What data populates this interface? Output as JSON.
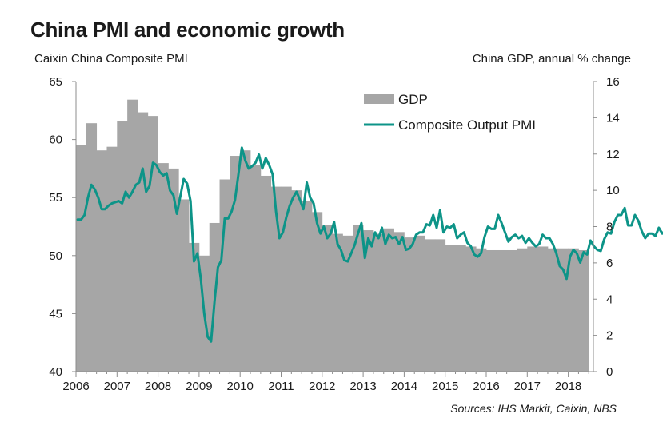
{
  "title": "China PMI and economic growth",
  "left_axis_title": "Caixin China Composite PMI",
  "right_axis_title": "China GDP, annual % change",
  "source": "Sources: IHS Markit, Caixin, NBS",
  "colors": {
    "gdp": "#a6a6a6",
    "pmi": "#0d9488",
    "axis": "#8c8c8c",
    "text": "#1a1a1a"
  },
  "chart_data": {
    "type": "bar+line",
    "x_ticks": [
      "2006",
      "2007",
      "2008",
      "2009",
      "2010",
      "2011",
      "2012",
      "2013",
      "2014",
      "2015",
      "2016",
      "2017",
      "2018"
    ],
    "left_axis": {
      "label": "Caixin China Composite PMI",
      "ylim": [
        40,
        65
      ],
      "ticks": [
        40,
        45,
        50,
        55,
        60,
        65
      ]
    },
    "right_axis": {
      "label": "China GDP, annual % change",
      "ylim": [
        0,
        16
      ],
      "ticks": [
        0,
        2,
        4,
        6,
        8,
        10,
        12,
        14,
        16
      ]
    },
    "legend": {
      "position": "top-right",
      "entries": [
        "GDP",
        "Composite Output PMI"
      ]
    },
    "grid": false,
    "series": [
      {
        "name": "GDP",
        "type": "bar",
        "axis": "right",
        "x": [
          "2006Q1",
          "2006Q2",
          "2006Q3",
          "2006Q4",
          "2007Q1",
          "2007Q2",
          "2007Q3",
          "2007Q4",
          "2008Q1",
          "2008Q2",
          "2008Q3",
          "2008Q4",
          "2009Q1",
          "2009Q2",
          "2009Q3",
          "2009Q4",
          "2010Q1",
          "2010Q2",
          "2010Q3",
          "2010Q4",
          "2011Q1",
          "2011Q2",
          "2011Q3",
          "2011Q4",
          "2012Q1",
          "2012Q2",
          "2012Q3",
          "2012Q4",
          "2013Q1",
          "2013Q2",
          "2013Q3",
          "2013Q4",
          "2014Q1",
          "2014Q2",
          "2014Q3",
          "2014Q4",
          "2015Q1",
          "2015Q2",
          "2015Q3",
          "2015Q4",
          "2016Q1",
          "2016Q2",
          "2016Q3",
          "2016Q4",
          "2017Q1",
          "2017Q2",
          "2017Q3",
          "2017Q4",
          "2018Q1",
          "2018Q2"
        ],
        "values": [
          12.5,
          13.7,
          12.2,
          12.4,
          13.8,
          15.0,
          14.3,
          14.1,
          11.5,
          11.2,
          9.5,
          7.1,
          6.4,
          8.2,
          10.6,
          11.9,
          12.2,
          11.4,
          10.8,
          10.2,
          10.2,
          10.0,
          9.4,
          8.8,
          8.1,
          7.6,
          7.5,
          8.1,
          7.8,
          7.6,
          7.9,
          7.7,
          7.4,
          7.5,
          7.3,
          7.3,
          7.0,
          7.0,
          6.9,
          6.8,
          6.7,
          6.7,
          6.7,
          6.8,
          6.9,
          6.9,
          6.8,
          6.8,
          6.8,
          6.7
        ]
      },
      {
        "name": "Composite Output PMI",
        "type": "line",
        "axis": "left",
        "x_start": "2006-01",
        "frequency": "monthly",
        "values": [
          53.1,
          53.1,
          53.5,
          55.0,
          56.1,
          55.7,
          55.0,
          54.0,
          54.0,
          54.3,
          54.5,
          54.6,
          54.7,
          54.5,
          55.5,
          55.0,
          55.5,
          56.1,
          56.3,
          57.5,
          55.5,
          56.0,
          58.0,
          57.8,
          57.2,
          56.9,
          57.1,
          55.6,
          55.2,
          53.6,
          55.1,
          56.6,
          56.2,
          54.7,
          49.5,
          50.2,
          48.0,
          45.0,
          43.0,
          42.6,
          46.0,
          49.0,
          49.6,
          53.2,
          53.2,
          53.8,
          54.8,
          57.0,
          59.3,
          58.2,
          57.5,
          57.7,
          58.0,
          58.7,
          57.5,
          58.4,
          57.8,
          57.0,
          53.8,
          51.5,
          52.0,
          53.3,
          54.3,
          55.0,
          55.5,
          54.8,
          54.0,
          56.3,
          55.0,
          54.5,
          52.8,
          51.9,
          52.5,
          51.5,
          51.9,
          52.9,
          51.0,
          50.5,
          49.6,
          49.5,
          50.2,
          50.9,
          51.9,
          52.8,
          49.8,
          51.5,
          50.8,
          52.0,
          51.5,
          52.4,
          51.0,
          51.8,
          51.5,
          51.6,
          51.0,
          51.6,
          50.5,
          50.6,
          51.0,
          51.8,
          52.0,
          52.0,
          52.7,
          52.6,
          53.5,
          52.4,
          53.9,
          52.0,
          52.5,
          52.4,
          52.7,
          51.5,
          51.8,
          52.0,
          51.1,
          50.8,
          50.1,
          49.9,
          50.2,
          51.6,
          52.5,
          52.3,
          52.3,
          53.5,
          52.8,
          52.0,
          51.2,
          51.6,
          51.8,
          51.5,
          51.7,
          51.1,
          51.5,
          51.1,
          50.8,
          51.0,
          51.8,
          51.5,
          51.5,
          51.0,
          50.2,
          49.1,
          48.8,
          48.0,
          49.9,
          50.5,
          50.2,
          49.4,
          50.3,
          50.1,
          51.3,
          50.8,
          50.5,
          50.4,
          51.4,
          52.0,
          51.9,
          52.9,
          53.5,
          53.5,
          54.1,
          52.6,
          52.6,
          53.5,
          53.0,
          52.1,
          51.5,
          51.9,
          51.9,
          51.7,
          52.4,
          51.9,
          52.2,
          53.0,
          53.9,
          54.4,
          54.0,
          53.3,
          52.3,
          52.4,
          52.6,
          53.0,
          53.2,
          52.4,
          52.5
        ]
      }
    ]
  }
}
